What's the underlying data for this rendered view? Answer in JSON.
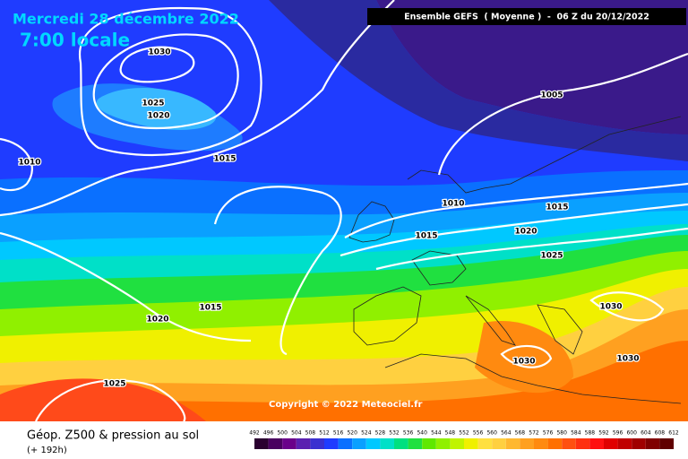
{
  "header": {
    "date": "Mercredi 28 décembre 2022",
    "time": "7:00 locale",
    "run": "Ensemble GEFS  ( Moyenne )  -  06 Z du 20/12/2022"
  },
  "map": {
    "isobar_labels": [
      "1030",
      "1025",
      "1020",
      "1015",
      "1010",
      "1005",
      "1010",
      "1015",
      "1015",
      "1020",
      "1025",
      "1020",
      "1015",
      "1030",
      "1030",
      "1030",
      "1025"
    ],
    "copyright": "Copyright © 2022 Meteociel.fr"
  },
  "footer": {
    "title": "Géop. Z500 & pression au sol",
    "lead": "(+ 192h)",
    "scale": [
      492,
      496,
      500,
      504,
      508,
      512,
      516,
      520,
      524,
      528,
      532,
      536,
      540,
      544,
      548,
      552,
      556,
      560,
      564,
      568,
      572,
      576,
      580,
      584,
      588,
      592,
      596,
      600,
      604,
      608,
      612
    ]
  }
}
